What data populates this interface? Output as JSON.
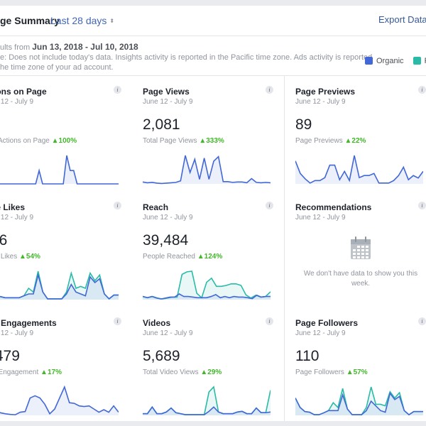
{
  "header": {
    "title": "ge Summary",
    "range_label": "Last 28 days",
    "range_caret": "⬍",
    "export_label": "Export Data",
    "export_icon": "download-icon"
  },
  "info": {
    "line1_prefix": "ults from ",
    "line1_range": "Jun 13, 2018 - Jul 10, 2018",
    "line2": "e: Does not include today's data. Insights activity is reported in the Pacific time zone. Ads activity is reported",
    "line3": "he time zone of your ad account."
  },
  "legend": [
    {
      "label": "Organic",
      "color": "#4267d6"
    },
    {
      "label": "Pa",
      "color": "#2abba7"
    }
  ],
  "colors": {
    "organic": "#4267d6",
    "paid": "#2abba7",
    "positive": "#42b72a"
  },
  "cards": [
    {
      "title": "tions on Page",
      "date": "ne 12 - July 9",
      "value": "",
      "sub": "al Actions on Page",
      "pct": "▲100%",
      "organic": [
        0,
        0,
        0,
        0,
        0,
        0,
        0,
        0,
        0,
        0,
        0,
        0,
        0,
        0,
        40,
        0,
        0,
        0,
        0,
        0,
        0,
        0,
        85,
        40,
        40,
        0,
        0,
        0,
        0,
        0,
        0,
        0,
        0,
        0,
        0,
        0,
        0,
        0
      ],
      "paid": null
    },
    {
      "title": "Page Views",
      "date": "June 12 - July 9",
      "value": "2,081",
      "sub": "Total Page Views",
      "pct": "▲333%",
      "organic": [
        5,
        3,
        4,
        2,
        1,
        2,
        3,
        4,
        8,
        75,
        30,
        65,
        12,
        68,
        12,
        60,
        72,
        6,
        6,
        4,
        5,
        5,
        3,
        14,
        4,
        3,
        4,
        3
      ],
      "paid": null
    },
    {
      "title": "Page Previews",
      "date": "June 12 - July 9",
      "value": "89",
      "sub": "Page Previews",
      "pct": "▲22%",
      "organic": [
        55,
        25,
        12,
        2,
        8,
        8,
        15,
        45,
        45,
        10,
        30,
        8,
        68,
        15,
        20,
        20,
        25,
        2,
        2,
        2,
        8,
        20,
        40,
        10,
        20,
        14,
        30
      ],
      "paid": null
    },
    {
      "title": "ge Likes",
      "date": "ne 12 - July 9",
      "value": "06",
      "sub": "ge Likes",
      "pct": "▲54%",
      "organic": [
        10,
        8,
        8,
        5,
        5,
        5,
        5,
        10,
        15,
        15,
        65,
        20,
        2,
        2,
        2,
        2,
        15,
        40,
        20,
        15,
        10,
        60,
        45,
        55,
        15,
        2,
        12,
        12
      ],
      "paid": [
        10,
        8,
        8,
        5,
        5,
        5,
        5,
        10,
        30,
        20,
        75,
        20,
        2,
        2,
        2,
        2,
        20,
        70,
        30,
        35,
        30,
        70,
        50,
        65,
        15,
        2,
        12,
        12
      ]
    },
    {
      "title": "Reach",
      "date": "June 12 - July 9",
      "value": "39,484",
      "sub": "People Reached",
      "pct": "▲124%",
      "organic": [
        10,
        6,
        10,
        5,
        2,
        5,
        8,
        8,
        18,
        10,
        10,
        8,
        6,
        6,
        6,
        10,
        16,
        6,
        10,
        6,
        10,
        8,
        8,
        6,
        3,
        14,
        8,
        10,
        10
      ],
      "paid": [
        10,
        6,
        10,
        5,
        2,
        5,
        8,
        8,
        80,
        88,
        90,
        20,
        6,
        55,
        68,
        42,
        42,
        45,
        50,
        50,
        45,
        15,
        5,
        14,
        8,
        10,
        25
      ]
    },
    {
      "title": "Recommendations",
      "date": "June 12 - July 9",
      "empty": "We don't have data to show you this week."
    },
    {
      "title": "st Engagements",
      "date": "ne 12 - July 9",
      "value": ",479",
      "sub": "st Engagement",
      "pct": "▲17%",
      "organic": [
        12,
        15,
        8,
        5,
        3,
        2,
        10,
        12,
        55,
        62,
        55,
        35,
        5,
        20,
        55,
        90,
        40,
        38,
        30,
        28,
        30,
        20,
        10,
        18,
        10,
        30,
        10
      ],
      "paid": null
    },
    {
      "title": "Videos",
      "date": "June 12 - July 9",
      "value": "5,689",
      "sub": "Total Video Views",
      "pct": "▲29%",
      "organic": [
        5,
        5,
        25,
        5,
        5,
        10,
        22,
        8,
        5,
        2,
        2,
        2,
        2,
        2,
        12,
        25,
        10,
        5,
        5,
        5,
        10,
        12,
        5,
        5,
        22,
        8,
        8,
        10
      ],
      "paid": [
        5,
        5,
        25,
        5,
        5,
        10,
        22,
        8,
        5,
        2,
        2,
        2,
        2,
        2,
        70,
        85,
        10,
        5,
        5,
        5,
        10,
        12,
        5,
        5,
        22,
        8,
        8,
        75
      ]
    },
    {
      "title": "Page Followers",
      "date": "June 12 - July 9",
      "value": "110",
      "sub": "Page Followers",
      "pct": "▲57%",
      "organic": [
        55,
        25,
        12,
        10,
        2,
        2,
        8,
        15,
        15,
        15,
        65,
        20,
        2,
        2,
        2,
        15,
        45,
        30,
        15,
        10,
        70,
        50,
        60,
        15,
        2,
        12,
        12,
        12
      ],
      "paid": [
        55,
        25,
        12,
        10,
        2,
        2,
        8,
        15,
        40,
        25,
        85,
        20,
        2,
        2,
        2,
        25,
        90,
        35,
        35,
        30,
        75,
        55,
        72,
        15,
        2,
        12,
        12,
        12
      ]
    }
  ]
}
